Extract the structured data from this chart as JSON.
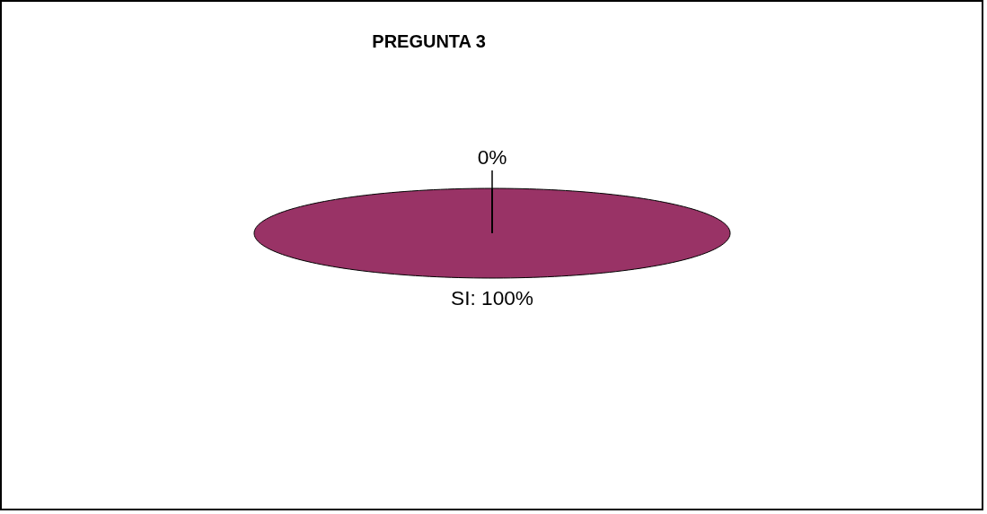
{
  "chart_data": {
    "type": "pie",
    "title": "PREGUNTA 3",
    "categories": [
      "SI",
      null
    ],
    "values": [
      100,
      0
    ],
    "colors": [
      "#993366",
      "#9999ff"
    ],
    "value_labels": [
      "100%",
      "0%"
    ]
  }
}
